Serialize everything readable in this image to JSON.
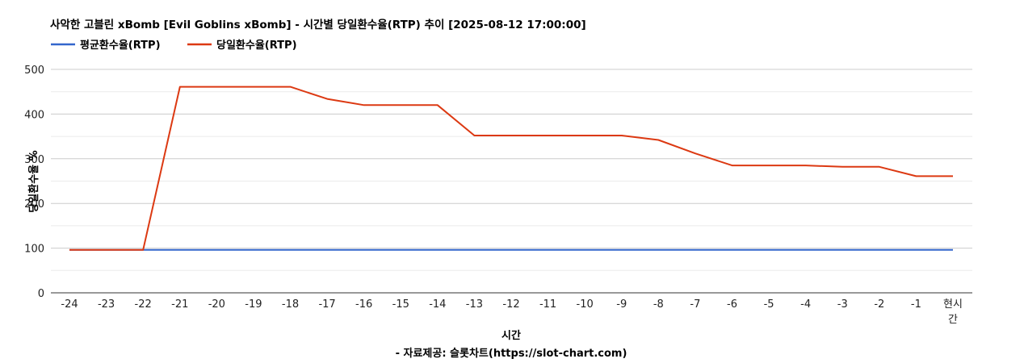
{
  "chart_data": {
    "type": "line",
    "title": "사악한 고블린 xBomb [Evil Goblins xBomb] - 시간별 당일환수율(RTP) 추이 [2025-08-12 17:00:00]",
    "xlabel": "시간",
    "ylabel": "당일환수율 %",
    "source": "- 자료제공: 슬롯차트(https://slot-chart.com)",
    "ylim": [
      0,
      500
    ],
    "yticks": [
      0,
      100,
      200,
      300,
      400,
      500
    ],
    "grid": true,
    "legend_position": "top-left",
    "categories": [
      "-24",
      "-23",
      "-22",
      "-21",
      "-20",
      "-19",
      "-18",
      "-17",
      "-16",
      "-15",
      "-14",
      "-13",
      "-12",
      "-11",
      "-10",
      "-9",
      "-8",
      "-7",
      "-6",
      "-5",
      "-4",
      "-3",
      "-2",
      "-1",
      "현시간"
    ],
    "series": [
      {
        "name": "평균환수율(RTP)",
        "color": "#3366cc",
        "values": [
          96,
          96,
          96,
          96,
          96,
          96,
          96,
          96,
          96,
          96,
          96,
          96,
          96,
          96,
          96,
          96,
          96,
          96,
          96,
          96,
          96,
          96,
          96,
          96,
          96
        ]
      },
      {
        "name": "당일환수율(RTP)",
        "color": "#dc3912",
        "values": [
          96,
          96,
          96,
          461,
          461,
          461,
          461,
          434,
          420,
          420,
          420,
          352,
          352,
          352,
          352,
          352,
          342,
          312,
          285,
          285,
          285,
          282,
          282,
          261,
          261
        ]
      }
    ]
  }
}
